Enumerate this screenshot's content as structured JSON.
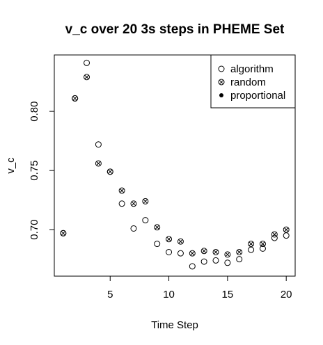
{
  "chart_data": {
    "type": "scatter",
    "title": "v_c over 20 3s steps in PHEME Set",
    "xlabel": "Time Step",
    "ylabel": "v_c",
    "xlim": [
      0.24,
      20.76
    ],
    "ylim": [
      0.6607,
      0.8477
    ],
    "x_ticks": [
      5,
      10,
      15,
      20
    ],
    "y_ticks": [
      0.7,
      0.75,
      0.8
    ],
    "x_tick_labels": [
      "5",
      "10",
      "15",
      "20"
    ],
    "y_tick_labels": [
      "0.70",
      "0.75",
      "0.80"
    ],
    "grid": false,
    "legend_position": "top-right",
    "series": [
      {
        "name": "algorithm",
        "marker": "open-circle",
        "x": [
          1,
          2,
          3,
          4,
          5,
          6,
          7,
          8,
          9,
          10,
          11,
          12,
          13,
          14,
          15,
          16,
          17,
          18,
          19,
          20
        ],
        "y": [
          0.697,
          0.811,
          0.841,
          0.772,
          0.749,
          0.722,
          0.701,
          0.708,
          0.688,
          0.681,
          0.68,
          0.669,
          0.673,
          0.674,
          0.672,
          0.675,
          0.683,
          0.684,
          0.693,
          0.695
        ]
      },
      {
        "name": "random",
        "marker": "circle-x",
        "x": [
          1,
          2,
          3,
          4,
          5,
          6,
          7,
          8,
          9,
          10,
          11,
          12,
          13,
          14,
          15,
          16,
          17,
          18,
          19,
          20
        ],
        "y": [
          0.697,
          0.811,
          0.829,
          0.756,
          0.749,
          0.733,
          0.722,
          0.724,
          0.702,
          0.692,
          0.69,
          0.68,
          0.682,
          0.681,
          0.679,
          0.681,
          0.688,
          0.688,
          0.696,
          0.7
        ]
      },
      {
        "name": "proportional",
        "marker": "filled-dot",
        "x": [],
        "y": []
      }
    ]
  }
}
